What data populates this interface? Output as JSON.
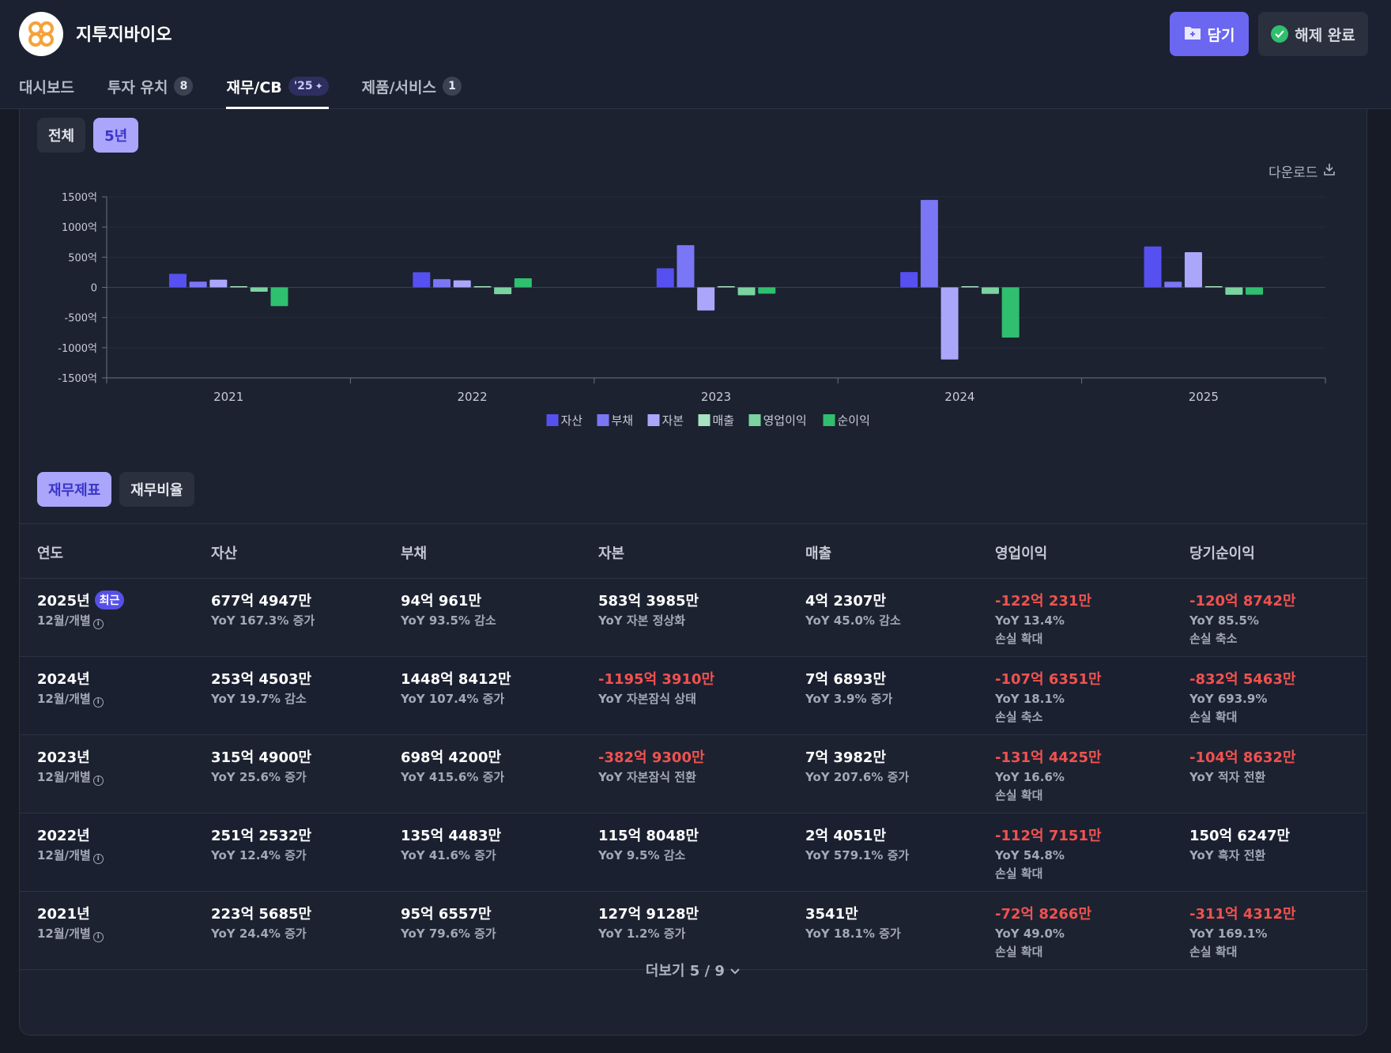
{
  "company": {
    "name": "지투지바이오"
  },
  "actions": {
    "bookmark": "담기",
    "release": "해제 완료"
  },
  "tabs": [
    {
      "label": "대시보드",
      "badge": ""
    },
    {
      "label": "투자 유치",
      "badge": "8"
    },
    {
      "label": "재무/CB",
      "badge": "'25"
    },
    {
      "label": "제품/서비스",
      "badge": "1"
    }
  ],
  "period_toggle": {
    "all": "전체",
    "five_years": "5년"
  },
  "download_label": "다운로드",
  "chart_data": {
    "type": "bar",
    "categories": [
      "2021",
      "2022",
      "2023",
      "2024",
      "2025"
    ],
    "series": [
      {
        "name": "자산",
        "color": "#5650f0",
        "values": [
          223.57,
          251.25,
          315.49,
          253.45,
          677.49
        ]
      },
      {
        "name": "부채",
        "color": "#7a76f6",
        "values": [
          95.66,
          135.45,
          698.42,
          1448.84,
          94.1
        ]
      },
      {
        "name": "자본",
        "color": "#aaa7fb",
        "values": [
          127.91,
          115.8,
          -382.93,
          -1195.39,
          583.4
        ]
      },
      {
        "name": "매출",
        "color": "#a6e3c2",
        "values": [
          0.35,
          2.41,
          7.4,
          7.69,
          4.23
        ]
      },
      {
        "name": "영업이익",
        "color": "#7bd3a0",
        "values": [
          -72.83,
          -112.72,
          -131.44,
          -107.64,
          -122.02
        ]
      },
      {
        "name": "순이익",
        "color": "#2fbf6f",
        "values": [
          -311.43,
          150.62,
          -104.86,
          -832.55,
          -120.87
        ]
      }
    ],
    "y_ticks": [
      "1500억",
      "1000억",
      "500억",
      "0",
      "-500억",
      "-1000억",
      "-1500억"
    ],
    "ylim": [
      -1500,
      1500
    ],
    "legend_position": "bottom-center"
  },
  "table_toggle": {
    "statements": "재무제표",
    "ratios": "재무비율"
  },
  "table": {
    "headers": [
      "연도",
      "자산",
      "부채",
      "자본",
      "매출",
      "영업이익",
      "당기순이익"
    ],
    "latest_badge": "최근",
    "rows": [
      {
        "year": "2025년",
        "period": "12월/개별",
        "asset": "677억 4947만",
        "asset_yoy": "YoY 167.3% 증가",
        "debt": "94억 961만",
        "debt_yoy": "YoY 93.5% 감소",
        "equity": "583억 3985만",
        "equity_yoy": "YoY 자본 정상화",
        "revenue": "4억 2307만",
        "revenue_yoy": "YoY 45.0% 감소",
        "op": "-122억 231만",
        "op_yoy": "YoY 13.4%",
        "op_note": "손실 확대",
        "net": "-120억 8742만",
        "net_yoy": "YoY 85.5%",
        "net_note": "손실 축소"
      },
      {
        "year": "2024년",
        "period": "12월/개별",
        "asset": "253억 4503만",
        "asset_yoy": "YoY 19.7% 감소",
        "debt": "1448억 8412만",
        "debt_yoy": "YoY 107.4% 증가",
        "equity": "-1195억 3910만",
        "equity_yoy": "YoY 자본잠식 상태",
        "revenue": "7억 6893만",
        "revenue_yoy": "YoY 3.9% 증가",
        "op": "-107억 6351만",
        "op_yoy": "YoY 18.1%",
        "op_note": "손실 축소",
        "net": "-832억 5463만",
        "net_yoy": "YoY 693.9%",
        "net_note": "손실 확대"
      },
      {
        "year": "2023년",
        "period": "12월/개별",
        "asset": "315억 4900만",
        "asset_yoy": "YoY 25.6% 증가",
        "debt": "698억 4200만",
        "debt_yoy": "YoY 415.6% 증가",
        "equity": "-382억 9300만",
        "equity_yoy": "YoY 자본잠식 전환",
        "revenue": "7억 3982만",
        "revenue_yoy": "YoY 207.6% 증가",
        "op": "-131억 4425만",
        "op_yoy": "YoY 16.6%",
        "op_note": "손실 확대",
        "net": "-104억 8632만",
        "net_yoy": "YoY 적자 전환",
        "net_note": ""
      },
      {
        "year": "2022년",
        "period": "12월/개별",
        "asset": "251억 2532만",
        "asset_yoy": "YoY 12.4% 증가",
        "debt": "135억 4483만",
        "debt_yoy": "YoY 41.6% 증가",
        "equity": "115억 8048만",
        "equity_yoy": "YoY 9.5% 감소",
        "revenue": "2억 4051만",
        "revenue_yoy": "YoY 579.1% 증가",
        "op": "-112억 7151만",
        "op_yoy": "YoY 54.8%",
        "op_note": "손실 확대",
        "net": "150억 6247만",
        "net_yoy": "YoY 흑자 전환",
        "net_note": ""
      },
      {
        "year": "2021년",
        "period": "12월/개별",
        "asset": "223억 5685만",
        "asset_yoy": "YoY 24.4% 증가",
        "debt": "95억 6557만",
        "debt_yoy": "YoY 79.6% 증가",
        "equity": "127억 9128만",
        "equity_yoy": "YoY 1.2% 증가",
        "revenue": "3541만",
        "revenue_yoy": "YoY 18.1% 증가",
        "op": "-72억 8266만",
        "op_yoy": "YoY 49.0%",
        "op_note": "손실 확대",
        "net": "-311억 4312만",
        "net_yoy": "YoY 169.1%",
        "net_note": "손실 확대"
      }
    ]
  },
  "more_label": "더보기 5 / 9",
  "colors": {
    "accent": "#6b67f0",
    "negative": "#f0524f",
    "positive_green": "#2fbf6f"
  }
}
